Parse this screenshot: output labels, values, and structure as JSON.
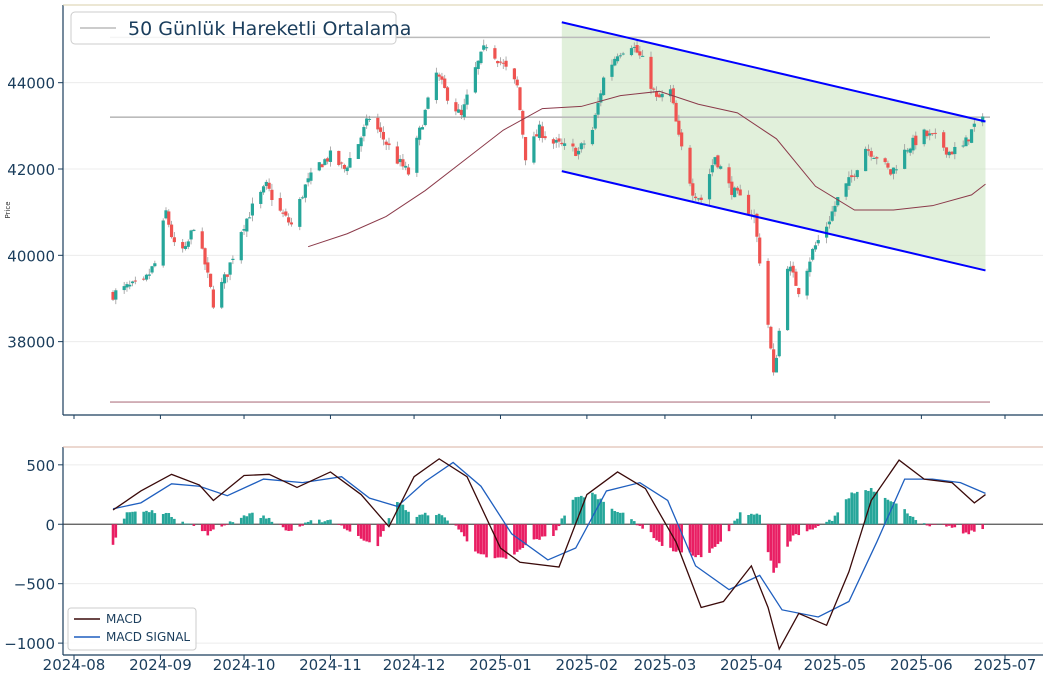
{
  "colors": {
    "up": "#26a69a",
    "down": "#ef5350",
    "ma": "#8b3a4a",
    "channel_line": "#0000ff",
    "channel_fill": "#c9e4bd",
    "level_line": "#bbbbbb",
    "low_level_line": "#c9a0aa",
    "macd_line": "#3a0a0a",
    "signal_line": "#1f5fbf",
    "hist_pos": "#26a69a",
    "hist_neg": "#e91e63",
    "axis_text": "#1a3d5c",
    "frame": "#1a3d5c"
  },
  "chart_data": [
    {
      "type": "candlestick",
      "ylabel": "Price",
      "ylim": [
        36300,
        45800
      ],
      "yticks": [
        "38000",
        "40000",
        "42000",
        "44000"
      ],
      "legend": {
        "position": "top-left",
        "entries": [
          "50 Günlük Hareketli Ortalama"
        ]
      },
      "horizontal_levels": [
        45050,
        43200,
        36600
      ],
      "channel": {
        "upper": [
          [
            "2025-01-23",
            45400
          ],
          [
            "2025-06-24",
            43100
          ]
        ],
        "lower": [
          [
            "2025-01-23",
            41950
          ],
          [
            "2025-06-24",
            39650
          ]
        ]
      },
      "close_series": [
        [
          "2024-08-15",
          39100
        ],
        [
          "2024-08-20",
          39250
        ],
        [
          "2024-08-26",
          39350
        ],
        [
          "2024-08-30",
          39800
        ],
        [
          "2024-09-03",
          41000
        ],
        [
          "2024-09-06",
          40200
        ],
        [
          "2024-09-10",
          40100
        ],
        [
          "2024-09-13",
          40700
        ],
        [
          "2024-09-17",
          39800
        ],
        [
          "2024-09-20",
          38900
        ],
        [
          "2024-09-25",
          39600
        ],
        [
          "2024-09-30",
          40600
        ],
        [
          "2024-10-04",
          41100
        ],
        [
          "2024-10-09",
          41600
        ],
        [
          "2024-10-14",
          41000
        ],
        [
          "2024-10-18",
          40700
        ],
        [
          "2024-10-23",
          41600
        ],
        [
          "2024-10-28",
          42100
        ],
        [
          "2024-11-01",
          42300
        ],
        [
          "2024-11-06",
          42000
        ],
        [
          "2024-11-11",
          42600
        ],
        [
          "2024-11-15",
          43200
        ],
        [
          "2024-11-20",
          42700
        ],
        [
          "2024-11-25",
          42200
        ],
        [
          "2024-11-29",
          41900
        ],
        [
          "2024-12-04",
          43100
        ],
        [
          "2024-12-09",
          44200
        ],
        [
          "2024-12-13",
          43700
        ],
        [
          "2024-12-18",
          43200
        ],
        [
          "2024-12-23",
          44300
        ],
        [
          "2024-12-27",
          44900
        ],
        [
          "2025-01-02",
          44400
        ],
        [
          "2025-01-07",
          43900
        ],
        [
          "2025-01-10",
          42300
        ],
        [
          "2025-01-15",
          42900
        ],
        [
          "2025-01-20",
          42600
        ],
        [
          "2025-01-24",
          42500
        ],
        [
          "2025-01-29",
          42400
        ],
        [
          "2025-02-03",
          42900
        ],
        [
          "2025-02-07",
          44100
        ],
        [
          "2025-02-12",
          44700
        ],
        [
          "2025-02-17",
          44900
        ],
        [
          "2025-02-21",
          44500
        ],
        [
          "2025-02-26",
          43600
        ],
        [
          "2025-03-03",
          43800
        ],
        [
          "2025-03-06",
          42700
        ],
        [
          "2025-03-11",
          41500
        ],
        [
          "2025-03-14",
          41300
        ],
        [
          "2025-03-19",
          42300
        ],
        [
          "2025-03-24",
          41600
        ],
        [
          "2025-03-28",
          41300
        ],
        [
          "2025-04-02",
          40900
        ],
        [
          "2025-04-07",
          38400
        ],
        [
          "2025-04-09",
          37200
        ],
        [
          "2025-04-14",
          39800
        ],
        [
          "2025-04-18",
          39200
        ],
        [
          "2025-04-23",
          40100
        ],
        [
          "2025-04-28",
          40700
        ],
        [
          "2025-05-02",
          41300
        ],
        [
          "2025-05-07",
          41800
        ],
        [
          "2025-05-12",
          42500
        ],
        [
          "2025-05-16",
          42300
        ],
        [
          "2025-05-21",
          41900
        ],
        [
          "2025-05-27",
          42500
        ],
        [
          "2025-06-02",
          42800
        ],
        [
          "2025-06-06",
          42700
        ],
        [
          "2025-06-11",
          42400
        ],
        [
          "2025-06-16",
          42500
        ],
        [
          "2025-06-20",
          43000
        ],
        [
          "2025-06-23",
          43100
        ]
      ],
      "ma50_series": [
        [
          "2024-10-24",
          40200
        ],
        [
          "2024-11-07",
          40500
        ],
        [
          "2024-11-21",
          40900
        ],
        [
          "2024-12-05",
          41500
        ],
        [
          "2024-12-19",
          42200
        ],
        [
          "2025-01-02",
          42900
        ],
        [
          "2025-01-16",
          43400
        ],
        [
          "2025-01-30",
          43450
        ],
        [
          "2025-02-13",
          43700
        ],
        [
          "2025-02-27",
          43800
        ],
        [
          "2025-03-13",
          43500
        ],
        [
          "2025-03-27",
          43300
        ],
        [
          "2025-04-10",
          42700
        ],
        [
          "2025-04-24",
          41600
        ],
        [
          "2025-05-08",
          41050
        ],
        [
          "2025-05-22",
          41050
        ],
        [
          "2025-06-05",
          41150
        ],
        [
          "2025-06-19",
          41400
        ],
        [
          "2025-06-24",
          41650
        ]
      ]
    },
    {
      "type": "line+bar",
      "ylim": [
        -1100,
        650
      ],
      "yticks": [
        "−1000",
        "−500",
        "0",
        "500"
      ],
      "xticks": [
        "2024-08",
        "2024-09",
        "2024-10",
        "2024-11",
        "2024-12",
        "2025-01",
        "2025-02",
        "2025-03",
        "2025-04",
        "2025-05",
        "2025-06",
        "2025-07"
      ],
      "legend": {
        "position": "bottom-left",
        "entries": [
          "MACD",
          "MACD SIGNAL"
        ]
      },
      "series": [
        {
          "name": "MACD",
          "values": [
            [
              "2024-08-15",
              120
            ],
            [
              "2024-08-25",
              280
            ],
            [
              "2024-09-05",
              420
            ],
            [
              "2024-09-15",
              330
            ],
            [
              "2024-09-20",
              200
            ],
            [
              "2024-10-01",
              410
            ],
            [
              "2024-10-10",
              420
            ],
            [
              "2024-10-20",
              310
            ],
            [
              "2024-11-01",
              440
            ],
            [
              "2024-11-12",
              250
            ],
            [
              "2024-11-22",
              -20
            ],
            [
              "2024-12-01",
              400
            ],
            [
              "2024-12-10",
              550
            ],
            [
              "2024-12-20",
              400
            ],
            [
              "2025-01-01",
              -200
            ],
            [
              "2025-01-08",
              -320
            ],
            [
              "2025-01-22",
              -360
            ],
            [
              "2025-02-01",
              250
            ],
            [
              "2025-02-12",
              440
            ],
            [
              "2025-02-22",
              300
            ],
            [
              "2025-03-05",
              -150
            ],
            [
              "2025-03-14",
              -700
            ],
            [
              "2025-03-22",
              -650
            ],
            [
              "2025-04-01",
              -350
            ],
            [
              "2025-04-07",
              -700
            ],
            [
              "2025-04-11",
              -1050
            ],
            [
              "2025-04-18",
              -750
            ],
            [
              "2025-04-28",
              -850
            ],
            [
              "2025-05-06",
              -400
            ],
            [
              "2025-05-14",
              200
            ],
            [
              "2025-05-24",
              540
            ],
            [
              "2025-06-02",
              380
            ],
            [
              "2025-06-12",
              350
            ],
            [
              "2025-06-20",
              180
            ],
            [
              "2025-06-24",
              250
            ]
          ]
        },
        {
          "name": "MACD SIGNAL",
          "values": [
            [
              "2024-08-15",
              130
            ],
            [
              "2024-08-25",
              180
            ],
            [
              "2024-09-05",
              340
            ],
            [
              "2024-09-15",
              320
            ],
            [
              "2024-09-25",
              240
            ],
            [
              "2024-10-08",
              380
            ],
            [
              "2024-10-22",
              350
            ],
            [
              "2024-11-05",
              400
            ],
            [
              "2024-11-15",
              220
            ],
            [
              "2024-11-25",
              150
            ],
            [
              "2024-12-05",
              360
            ],
            [
              "2024-12-15",
              520
            ],
            [
              "2024-12-25",
              320
            ],
            [
              "2025-01-05",
              -80
            ],
            [
              "2025-01-18",
              -300
            ],
            [
              "2025-01-28",
              -200
            ],
            [
              "2025-02-08",
              280
            ],
            [
              "2025-02-20",
              350
            ],
            [
              "2025-03-02",
              200
            ],
            [
              "2025-03-12",
              -350
            ],
            [
              "2025-03-24",
              -550
            ],
            [
              "2025-04-04",
              -430
            ],
            [
              "2025-04-12",
              -720
            ],
            [
              "2025-04-25",
              -780
            ],
            [
              "2025-05-06",
              -650
            ],
            [
              "2025-05-16",
              -150
            ],
            [
              "2025-05-26",
              380
            ],
            [
              "2025-06-05",
              380
            ],
            [
              "2025-06-15",
              350
            ],
            [
              "2025-06-24",
              260
            ]
          ]
        }
      ],
      "histogram": [
        [
          "2024-08-15",
          -160
        ],
        [
          "2024-08-20",
          100
        ],
        [
          "2024-09-01",
          110
        ],
        [
          "2024-09-10",
          20
        ],
        [
          "2024-09-18",
          -80
        ],
        [
          "2024-09-26",
          20
        ],
        [
          "2024-10-03",
          90
        ],
        [
          "2024-10-10",
          50
        ],
        [
          "2024-10-17",
          -60
        ],
        [
          "2024-10-25",
          20
        ],
        [
          "2024-11-02",
          40
        ],
        [
          "2024-11-10",
          -100
        ],
        [
          "2024-11-18",
          -170
        ],
        [
          "2024-11-25",
          200
        ],
        [
          "2024-12-01",
          60
        ],
        [
          "2024-12-08",
          100
        ],
        [
          "2024-12-15",
          20
        ],
        [
          "2024-12-22",
          -200
        ],
        [
          "2024-12-28",
          -300
        ],
        [
          "2025-01-05",
          -280
        ],
        [
          "2025-01-12",
          -140
        ],
        [
          "2025-01-20",
          -90
        ],
        [
          "2025-01-27",
          210
        ],
        [
          "2025-02-03",
          260
        ],
        [
          "2025-02-10",
          140
        ],
        [
          "2025-02-17",
          40
        ],
        [
          "2025-02-24",
          -80
        ],
        [
          "2025-03-01",
          -200
        ],
        [
          "2025-03-08",
          -240
        ],
        [
          "2025-03-15",
          -280
        ],
        [
          "2025-03-22",
          -130
        ],
        [
          "2025-03-28",
          100
        ],
        [
          "2025-04-04",
          80
        ],
        [
          "2025-04-09",
          -420
        ],
        [
          "2025-04-16",
          -100
        ],
        [
          "2025-04-23",
          -50
        ],
        [
          "2025-04-30",
          40
        ],
        [
          "2025-05-07",
          260
        ],
        [
          "2025-05-14",
          300
        ],
        [
          "2025-05-20",
          220
        ],
        [
          "2025-05-27",
          100
        ],
        [
          "2025-06-03",
          -20
        ],
        [
          "2025-06-10",
          -10
        ],
        [
          "2025-06-17",
          -80
        ],
        [
          "2025-06-23",
          -40
        ]
      ]
    }
  ]
}
